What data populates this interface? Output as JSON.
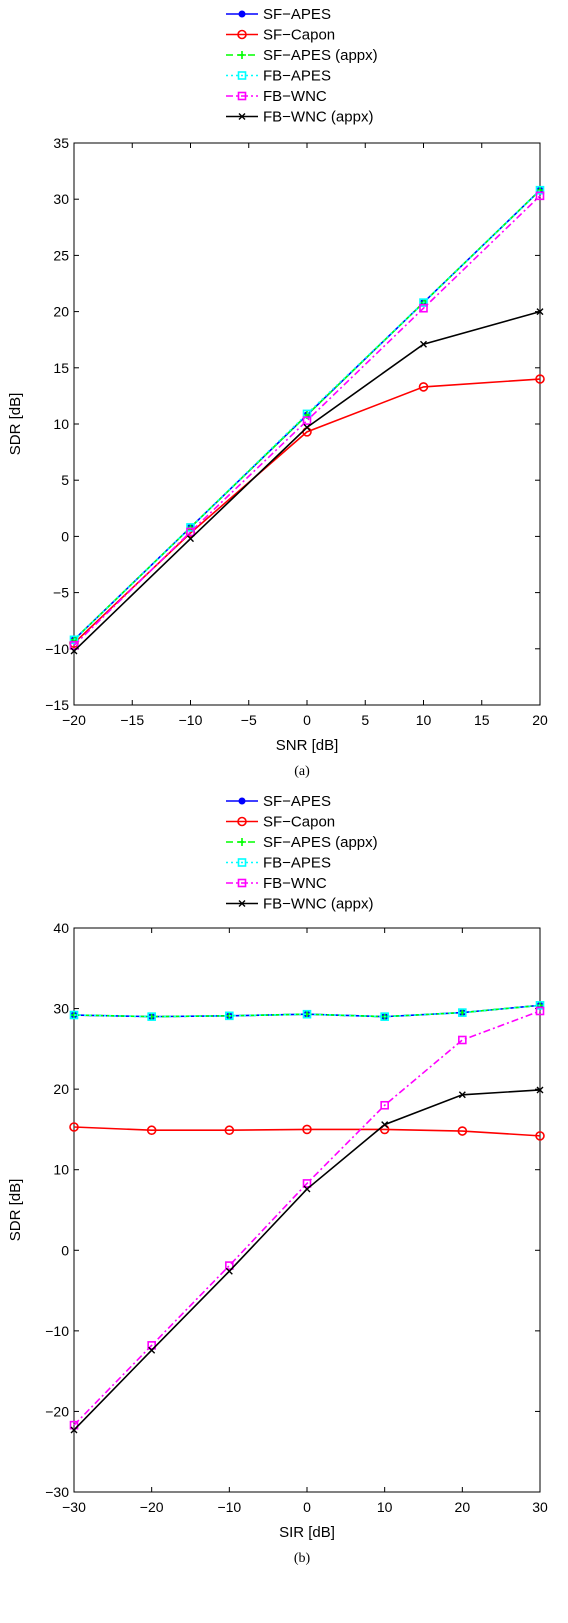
{
  "chart_data": [
    {
      "type": "line",
      "caption": "(a)",
      "xlabel": "SNR [dB]",
      "ylabel": "SDR [dB]",
      "xlim": [
        -20,
        20
      ],
      "ylim": [
        -15,
        35
      ],
      "xticks": [
        -20,
        -15,
        -10,
        -5,
        0,
        5,
        10,
        15,
        20
      ],
      "yticks": [
        -15,
        -10,
        -5,
        0,
        5,
        10,
        15,
        20,
        25,
        30,
        35
      ],
      "x": [
        -20,
        -10,
        0,
        10,
        20
      ],
      "legend_position": "top",
      "grid": false,
      "series": [
        {
          "name": "SF−APES",
          "values": [
            -9.2,
            0.8,
            10.8,
            20.8,
            30.8
          ],
          "color": "#0000ff",
          "style": "solid",
          "marker": "dot"
        },
        {
          "name": "SF−Capon",
          "values": [
            -9.5,
            0.3,
            9.3,
            13.3,
            14.0
          ],
          "color": "#ff0000",
          "style": "solid",
          "marker": "circle"
        },
        {
          "name": "SF−APES (appx)",
          "values": [
            -9.2,
            0.8,
            10.8,
            20.8,
            30.8
          ],
          "color": "#00ff00",
          "style": "dashed",
          "marker": "plus"
        },
        {
          "name": "FB−APES",
          "values": [
            -9.2,
            0.8,
            10.9,
            20.8,
            30.8
          ],
          "color": "#00ffff",
          "style": "dotted",
          "marker": "square"
        },
        {
          "name": "FB−WNC",
          "values": [
            -9.7,
            0.4,
            10.3,
            20.3,
            30.3
          ],
          "color": "#ff00ff",
          "style": "dashdot",
          "marker": "square"
        },
        {
          "name": "FB−WNC (appx)",
          "values": [
            -10.2,
            -0.2,
            9.7,
            17.1,
            20.0
          ],
          "color": "#000000",
          "style": "solid",
          "marker": "x"
        }
      ]
    },
    {
      "type": "line",
      "caption": "(b)",
      "xlabel": "SIR [dB]",
      "ylabel": "SDR [dB]",
      "xlim": [
        -30,
        30
      ],
      "ylim": [
        -30,
        40
      ],
      "xticks": [
        -30,
        -20,
        -10,
        0,
        10,
        20,
        30
      ],
      "yticks": [
        -30,
        -20,
        -10,
        0,
        10,
        20,
        30,
        40
      ],
      "x": [
        -30,
        -20,
        -10,
        0,
        10,
        20,
        30
      ],
      "legend_position": "top",
      "grid": false,
      "series": [
        {
          "name": "SF−APES",
          "values": [
            29.2,
            29.0,
            29.1,
            29.3,
            29.0,
            29.5,
            30.4
          ],
          "color": "#0000ff",
          "style": "solid",
          "marker": "dot"
        },
        {
          "name": "SF−Capon",
          "values": [
            15.3,
            14.9,
            14.9,
            15.0,
            15.0,
            14.8,
            14.2
          ],
          "color": "#ff0000",
          "style": "solid",
          "marker": "circle"
        },
        {
          "name": "SF−APES (appx)",
          "values": [
            29.2,
            29.0,
            29.1,
            29.3,
            29.0,
            29.5,
            30.4
          ],
          "color": "#00ff00",
          "style": "dashed",
          "marker": "plus"
        },
        {
          "name": "FB−APES",
          "values": [
            29.2,
            29.0,
            29.1,
            29.3,
            29.0,
            29.5,
            30.4
          ],
          "color": "#00ffff",
          "style": "dotted",
          "marker": "square"
        },
        {
          "name": "FB−WNC",
          "values": [
            -21.7,
            -11.8,
            -1.9,
            8.3,
            18.0,
            26.1,
            29.7
          ],
          "color": "#ff00ff",
          "style": "dashdot",
          "marker": "square"
        },
        {
          "name": "FB−WNC (appx)",
          "values": [
            -22.3,
            -12.4,
            -2.6,
            7.6,
            15.6,
            19.3,
            19.9
          ],
          "color": "#000000",
          "style": "solid",
          "marker": "x"
        }
      ]
    }
  ]
}
